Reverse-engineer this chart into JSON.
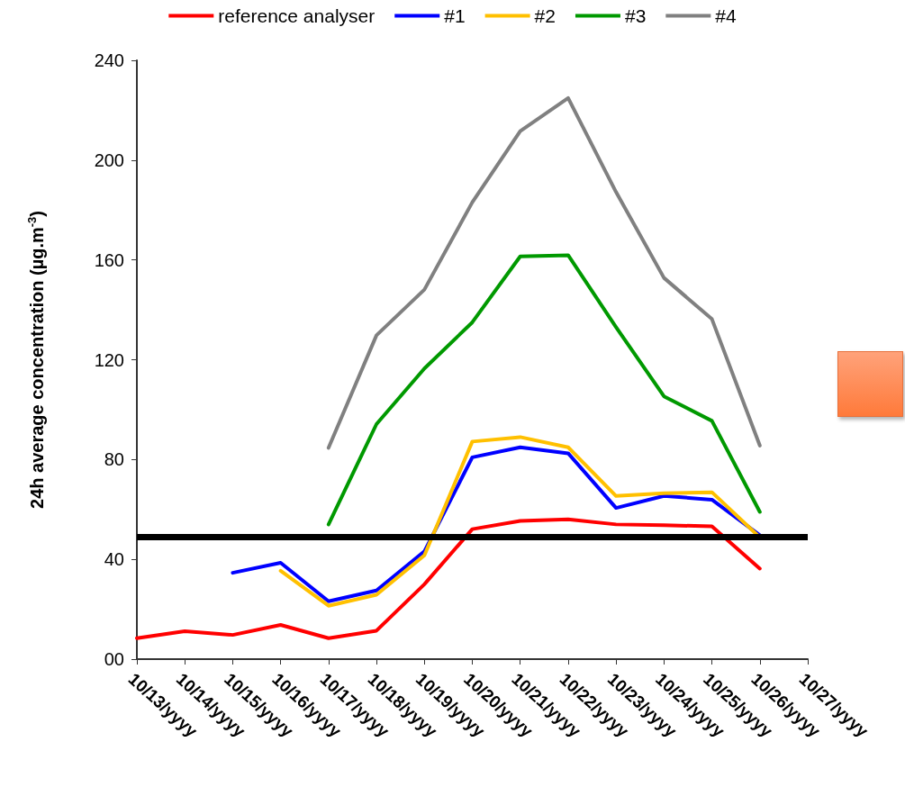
{
  "chart_data": {
    "type": "line",
    "ylabel": "24h average concentration (µg.m$^{-3}$)",
    "categories": [
      "10/13/yyyy",
      "10/14/yyyy",
      "10/15/yyyy",
      "10/16/yyyy",
      "10/17/yyyy",
      "10/18/yyyy",
      "10/19/yyyy",
      "10/20/yyyy",
      "10/21/yyyy",
      "10/22/yyyy",
      "10/23/yyyy",
      "10/24/yyyy",
      "10/25/yyyy",
      "10/26/yyyy",
      "10/27/yyyy"
    ],
    "series": [
      {
        "name": "reference analyser",
        "color": "#ff0000",
        "values": [
          8.4,
          11.2,
          9.7,
          13.7,
          8.4,
          11.4,
          30.0,
          52.1,
          55.4,
          56.0,
          54.0,
          53.7,
          53.2,
          36.3,
          null
        ]
      },
      {
        "name": "#1",
        "color": "#0000ff",
        "values": [
          null,
          null,
          34.6,
          38.6,
          23.2,
          27.5,
          43.2,
          80.9,
          84.9,
          82.5,
          60.6,
          65.4,
          63.9,
          49.7,
          null
        ]
      },
      {
        "name": "#2",
        "color": "#ffc000",
        "values": [
          null,
          null,
          null,
          35.4,
          21.4,
          25.8,
          41.6,
          87.2,
          89.0,
          84.9,
          65.4,
          66.5,
          66.9,
          48.8,
          null
        ]
      },
      {
        "name": "#3",
        "color": "#009900",
        "values": [
          null,
          null,
          null,
          null,
          54.0,
          94.2,
          116.5,
          135,
          161.4,
          161.9,
          133,
          105.3,
          95.5,
          59.0,
          null
        ]
      },
      {
        "name": "#4",
        "color": "#808080",
        "values": [
          null,
          null,
          null,
          null,
          84.7,
          129.8,
          148.1,
          183.1,
          211.6,
          224.9,
          187.2,
          152.8,
          136.3,
          85.6,
          null
        ]
      }
    ],
    "ylim": [
      0,
      240
    ],
    "yticks": [
      {
        "value": 0,
        "label": "00"
      },
      40,
      80,
      120,
      160,
      200,
      240
    ],
    "ref_lines": [
      {
        "axis": "y",
        "value": 49,
        "color": "#000000"
      }
    ],
    "grid": false,
    "legend": "top",
    "marker": "none",
    "line_style": "solid"
  }
}
